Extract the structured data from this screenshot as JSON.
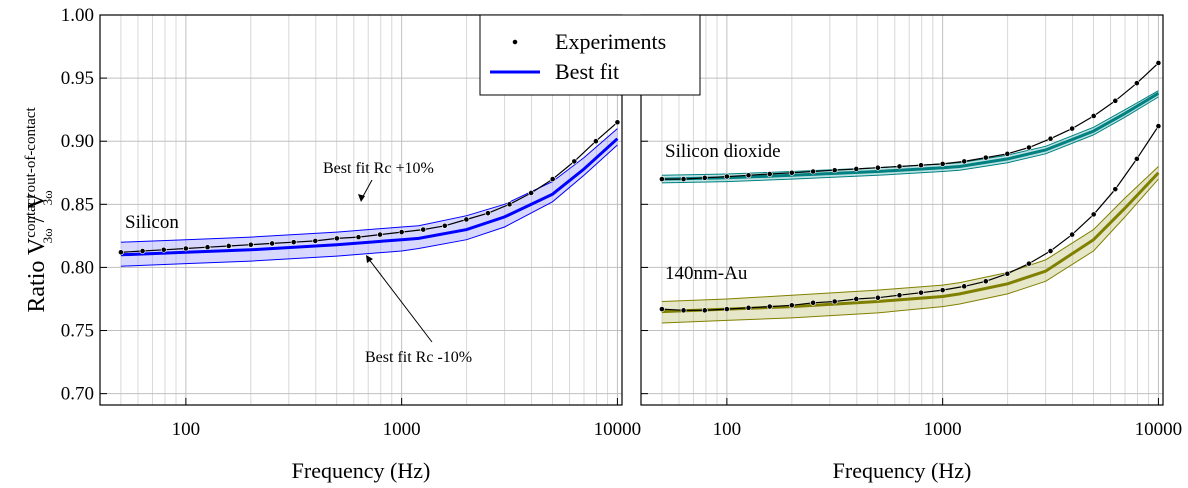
{
  "chart_data": [
    {
      "type": "line",
      "xlabel": "Frequency (Hz)",
      "ylabel": {
        "main": "Ratio V",
        "sup1": "contact",
        "sub1": "3ω",
        "sep": " / V",
        "sup2": "out-of-contact",
        "sub2": "3ω"
      },
      "xlog": true,
      "grid": true,
      "y_tick_labels": true,
      "xlim": [
        40,
        10500
      ],
      "ylim": [
        0.691,
        1.0
      ],
      "xticks": [
        100,
        1000,
        10000
      ],
      "yticks": [
        {
          "value": 0.7,
          "label": "0.70"
        },
        0.75,
        {
          "value": 0.8,
          "label": "0.80"
        },
        0.85,
        {
          "value": 0.9,
          "label": "0.90"
        },
        0.95,
        {
          "value": 1.0,
          "label": "1.00"
        }
      ],
      "x": [
        50,
        63,
        79,
        100,
        126,
        158,
        200,
        251,
        316,
        398,
        501,
        631,
        794,
        1000,
        1259,
        1585,
        1995,
        2512,
        3162,
        3981,
        5012,
        6310,
        7943,
        10000
      ],
      "fit_x": [
        50,
        100,
        200,
        500,
        1000,
        1200,
        2000,
        3000,
        5000,
        7000,
        10000
      ],
      "series": [
        {
          "label": "Silicon",
          "color": "#0000ff",
          "band_color": "#9090ff",
          "experiments": [
            0.812,
            0.813,
            0.814,
            0.815,
            0.816,
            0.817,
            0.818,
            0.819,
            0.82,
            0.821,
            0.823,
            0.824,
            0.826,
            0.828,
            0.83,
            0.833,
            0.838,
            0.843,
            0.85,
            0.859,
            0.87,
            0.884,
            0.9,
            0.915
          ],
          "fit": [
            0.81,
            0.812,
            0.814,
            0.818,
            0.822,
            0.823,
            0.83,
            0.84,
            0.858,
            0.878,
            0.902
          ],
          "fit_upper": [
            0.82,
            0.822,
            0.824,
            0.828,
            0.832,
            0.833,
            0.841,
            0.85,
            0.868,
            0.887,
            0.91
          ],
          "fit_lower": [
            0.801,
            0.803,
            0.805,
            0.809,
            0.813,
            0.815,
            0.822,
            0.832,
            0.852,
            0.873,
            0.897
          ]
        }
      ],
      "annotations": [
        "Best fit Rc +10%",
        "Best fit Rc -10%"
      ]
    },
    {
      "type": "line",
      "xlabel": "Frequency (Hz)",
      "xlog": true,
      "grid": true,
      "y_tick_labels": false,
      "xlim": [
        40,
        10500
      ],
      "ylim": [
        0.691,
        1.0
      ],
      "xticks": [
        100,
        1000,
        10000
      ],
      "yticks": [
        0.7,
        0.75,
        0.8,
        0.85,
        0.9,
        0.95,
        1.0
      ],
      "x": [
        50,
        63,
        79,
        100,
        126,
        158,
        200,
        251,
        316,
        398,
        501,
        631,
        794,
        1000,
        1259,
        1585,
        1995,
        2512,
        3162,
        3981,
        5012,
        6310,
        7943,
        10000
      ],
      "fit_x": [
        50,
        100,
        200,
        500,
        1000,
        1200,
        2000,
        3000,
        5000,
        7000,
        10000
      ],
      "series": [
        {
          "label": "Silicon dioxide",
          "color": "#008080",
          "band_color": "#40b0b0",
          "experiments": [
            0.87,
            0.87,
            0.871,
            0.872,
            0.873,
            0.874,
            0.875,
            0.876,
            0.877,
            0.878,
            0.879,
            0.88,
            0.881,
            0.882,
            0.884,
            0.887,
            0.89,
            0.895,
            0.902,
            0.91,
            0.92,
            0.932,
            0.946,
            0.962
          ],
          "fit": [
            0.87,
            0.871,
            0.873,
            0.876,
            0.879,
            0.88,
            0.886,
            0.893,
            0.908,
            0.922,
            0.938
          ],
          "fit_upper": [
            0.873,
            0.874,
            0.876,
            0.879,
            0.882,
            0.883,
            0.889,
            0.896,
            0.911,
            0.925,
            0.94
          ],
          "fit_lower": [
            0.867,
            0.868,
            0.87,
            0.873,
            0.876,
            0.877,
            0.883,
            0.89,
            0.905,
            0.919,
            0.935
          ]
        },
        {
          "label": "140nm-Au",
          "color": "#808000",
          "band_color": "#b8b860",
          "experiments": [
            0.767,
            0.766,
            0.766,
            0.767,
            0.768,
            0.769,
            0.77,
            0.772,
            0.773,
            0.775,
            0.776,
            0.778,
            0.78,
            0.782,
            0.785,
            0.789,
            0.795,
            0.803,
            0.813,
            0.826,
            0.842,
            0.862,
            0.886,
            0.912
          ],
          "fit": [
            0.765,
            0.767,
            0.769,
            0.773,
            0.777,
            0.779,
            0.787,
            0.797,
            0.822,
            0.847,
            0.875
          ],
          "fit_upper": [
            0.773,
            0.775,
            0.778,
            0.782,
            0.786,
            0.788,
            0.796,
            0.806,
            0.83,
            0.855,
            0.88
          ],
          "fit_lower": [
            0.756,
            0.758,
            0.76,
            0.764,
            0.769,
            0.771,
            0.779,
            0.789,
            0.813,
            0.84,
            0.87
          ]
        }
      ]
    }
  ],
  "legend": [
    {
      "name": "Experiments",
      "color": "#000000"
    },
    {
      "name": "Best fit",
      "color": "#0000ff"
    }
  ]
}
